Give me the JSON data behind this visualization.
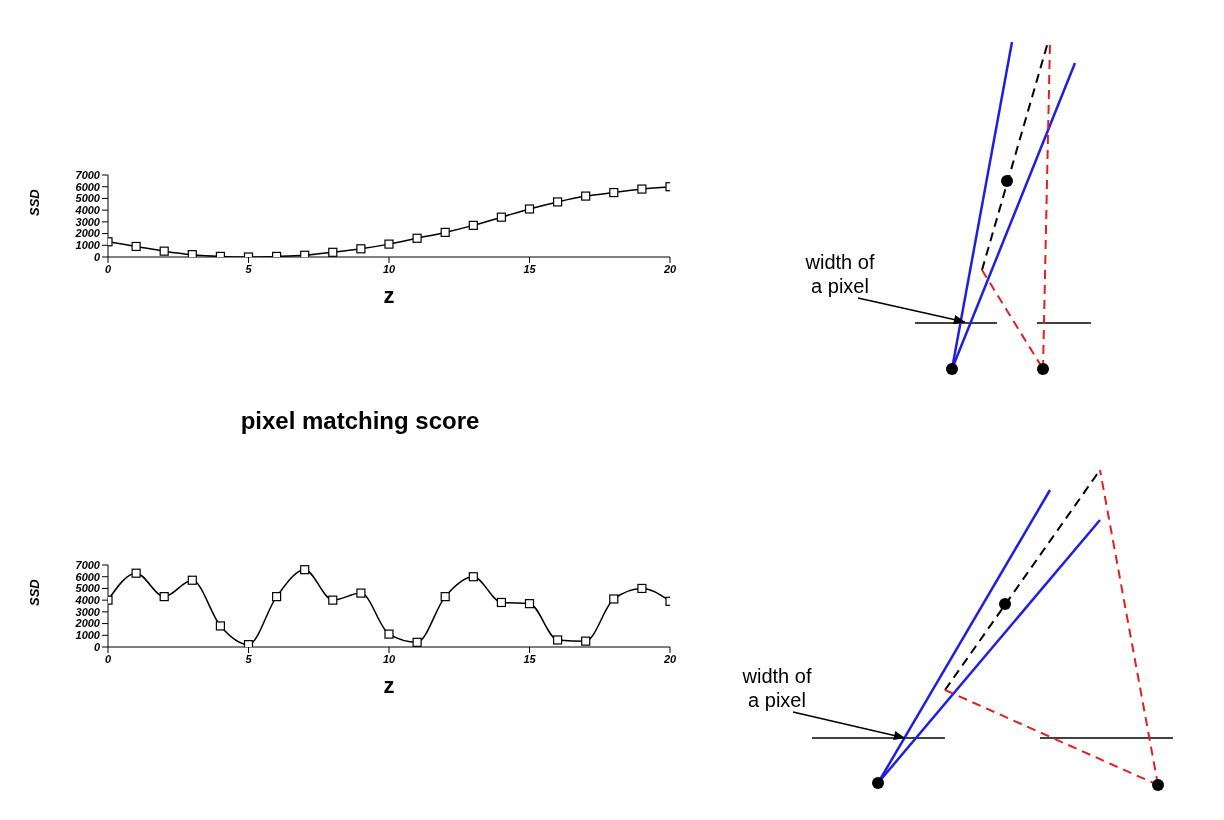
{
  "chart_data": [
    {
      "type": "line",
      "xlabel": "z",
      "ylabel": "SSD",
      "x": [
        0,
        1,
        2,
        3,
        4,
        5,
        6,
        7,
        8,
        9,
        10,
        11,
        12,
        13,
        14,
        15,
        16,
        17,
        18,
        19,
        20
      ],
      "values": [
        1300,
        900,
        500,
        200,
        50,
        0,
        50,
        150,
        400,
        700,
        1100,
        1600,
        2100,
        2700,
        3400,
        4100,
        4700,
        5200,
        5500,
        5800,
        6000
      ],
      "color": "#000000",
      "marker": "square",
      "xlim": [
        0,
        20
      ],
      "xticks": [
        0,
        5,
        10,
        15,
        20
      ],
      "ylim": [
        0,
        7000
      ],
      "yticks": [
        0,
        1000,
        2000,
        3000,
        4000,
        5000,
        6000,
        7000
      ],
      "grid": false,
      "legend": false,
      "annotations": [
        "width of a pixel"
      ]
    },
    {
      "type": "line",
      "title": "pixel matching score",
      "xlabel": "z",
      "ylabel": "SSD",
      "x": [
        0,
        1,
        2,
        3,
        4,
        5,
        6,
        7,
        8,
        9,
        10,
        11,
        12,
        13,
        14,
        15,
        16,
        17,
        18,
        19,
        20
      ],
      "values": [
        4000,
        6300,
        4300,
        5700,
        1800,
        200,
        4300,
        6600,
        4000,
        4600,
        1100,
        400,
        4300,
        6000,
        3800,
        3700,
        600,
        500,
        4100,
        5000,
        3900
      ],
      "color": "#000000",
      "marker": "square",
      "xlim": [
        0,
        20
      ],
      "xticks": [
        0,
        5,
        10,
        15,
        20
      ],
      "ylim": [
        0,
        7000
      ],
      "yticks": [
        0,
        1000,
        2000,
        3000,
        4000,
        5000,
        6000,
        7000
      ],
      "grid": false,
      "legend": false,
      "annotations": [
        "width of a pixel"
      ]
    }
  ]
}
